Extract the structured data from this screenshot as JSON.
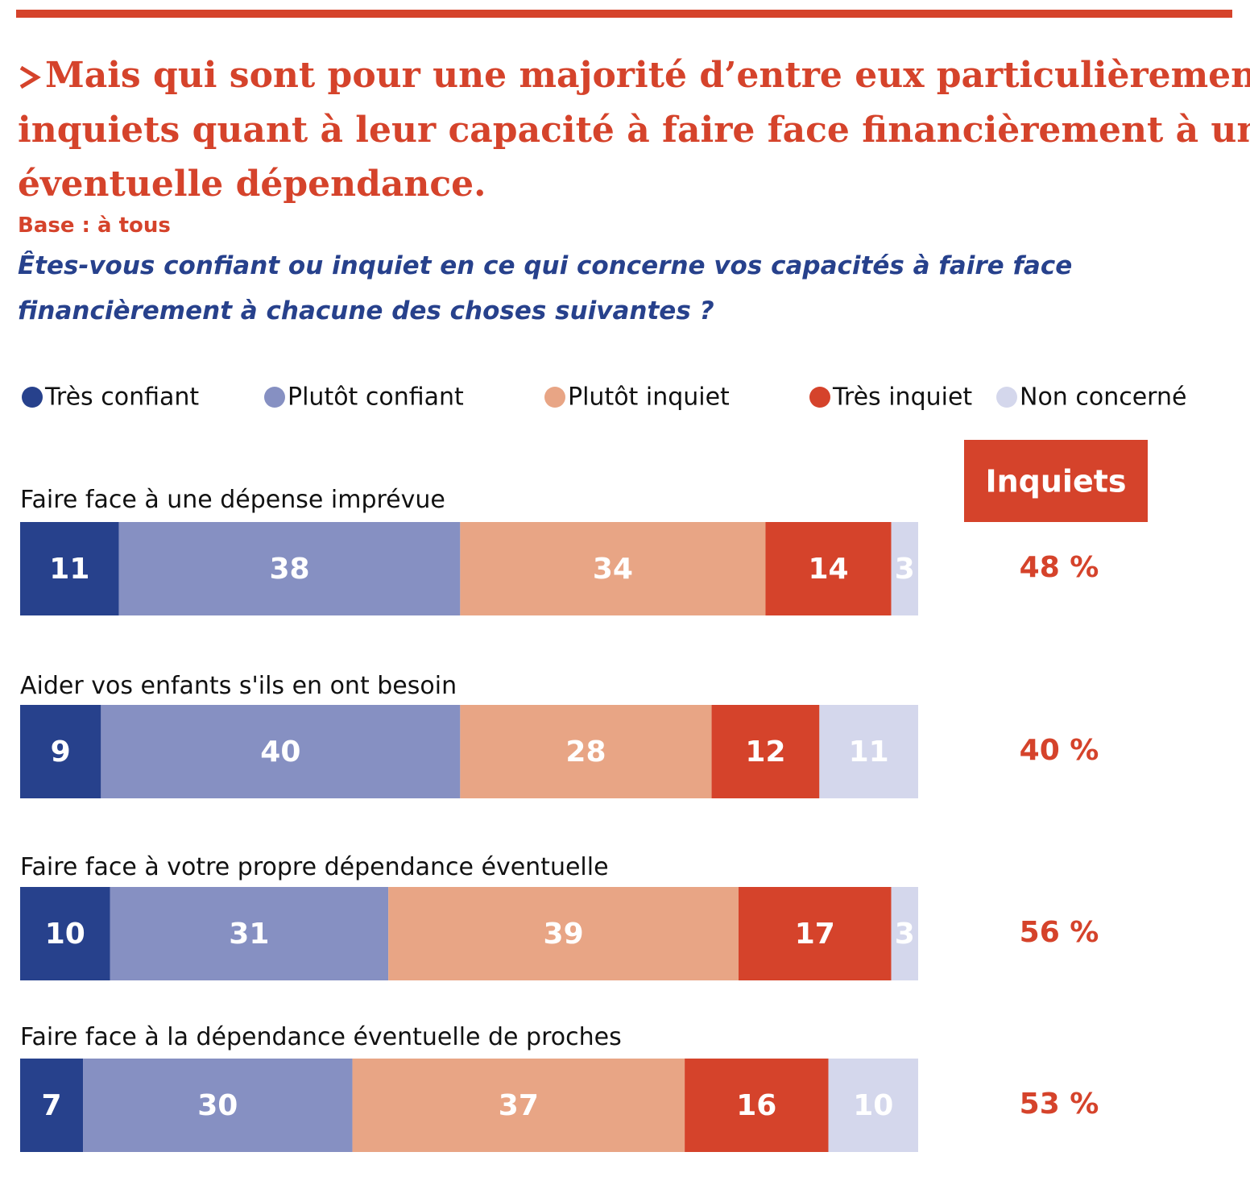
{
  "chart_data": {
    "type": "bar",
    "stacked": true,
    "orientation": "horizontal",
    "title": [
      "Mais qui sont pour une majorité d’entre eux particulièrement",
      "inquiets quant à leur capacité à faire face financièrement à une",
      "éventuelle dépendance."
    ],
    "subtitle": "Base : à tous",
    "question": [
      "Êtes-vous confiant ou inquiet en ce qui concerne vos capacités à faire face",
      "financièrement à chacune des choses suivantes ?"
    ],
    "categories": [
      "Faire face à une dépense imprévue",
      "Aider vos enfants s'ils en ont besoin",
      "Faire face à votre propre dépendance éventuelle",
      "Faire face à la dépendance éventuelle de proches"
    ],
    "xlim": [
      0,
      100
    ],
    "series": [
      {
        "name": "Très confiant",
        "color": "#27418c",
        "values": [
          11,
          9,
          10,
          7
        ]
      },
      {
        "name": "Plutôt confiant",
        "color": "#8690c2",
        "values": [
          38,
          40,
          31,
          30
        ]
      },
      {
        "name": "Plutôt inquiet",
        "color": "#e8a585",
        "values": [
          34,
          28,
          39,
          37
        ]
      },
      {
        "name": "Très inquiet",
        "color": "#d5432b",
        "values": [
          14,
          12,
          17,
          16
        ]
      },
      {
        "name": "Non concerné",
        "color": "#d4d7ec",
        "values": [
          3,
          11,
          3,
          10
        ]
      }
    ],
    "summary": {
      "title": "Inquiets",
      "color": "#d5432b",
      "values": [
        48,
        40,
        56,
        53
      ],
      "value_labels": [
        "48 %",
        "40 %",
        "56 %",
        "53 %"
      ]
    }
  }
}
